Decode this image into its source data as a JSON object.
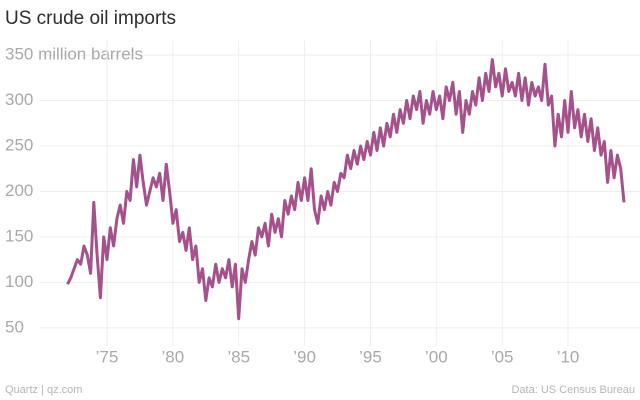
{
  "chart_data": {
    "type": "line",
    "title": "US crude oil imports",
    "source": "Data: US Census Bureau",
    "credit": "Quartz | qz.com",
    "x": [
      1972,
      1972.25,
      1972.5,
      1972.75,
      1973,
      1973.25,
      1973.5,
      1973.75,
      1974,
      1974.25,
      1974.5,
      1974.75,
      1975,
      1975.25,
      1975.5,
      1975.75,
      1976,
      1976.25,
      1976.5,
      1976.75,
      1977,
      1977.25,
      1977.5,
      1977.75,
      1978,
      1978.25,
      1978.5,
      1978.75,
      1979,
      1979.25,
      1979.5,
      1979.75,
      1980,
      1980.25,
      1980.5,
      1980.75,
      1981,
      1981.25,
      1981.5,
      1981.75,
      1982,
      1982.25,
      1982.5,
      1982.75,
      1983,
      1983.25,
      1983.5,
      1983.75,
      1984,
      1984.25,
      1984.5,
      1984.75,
      1985,
      1985.25,
      1985.5,
      1985.75,
      1986,
      1986.25,
      1986.5,
      1986.75,
      1987,
      1987.25,
      1987.5,
      1987.75,
      1988,
      1988.25,
      1988.5,
      1988.75,
      1989,
      1989.25,
      1989.5,
      1989.75,
      1990,
      1990.25,
      1990.5,
      1990.75,
      1991,
      1991.25,
      1991.5,
      1991.75,
      1992,
      1992.25,
      1992.5,
      1992.75,
      1993,
      1993.25,
      1993.5,
      1993.75,
      1994,
      1994.25,
      1994.5,
      1994.75,
      1995,
      1995.25,
      1995.5,
      1995.75,
      1996,
      1996.25,
      1996.5,
      1996.75,
      1997,
      1997.25,
      1997.5,
      1997.75,
      1998,
      1998.25,
      1998.5,
      1998.75,
      1999,
      1999.25,
      1999.5,
      1999.75,
      2000,
      2000.25,
      2000.5,
      2000.75,
      2001,
      2001.25,
      2001.5,
      2001.75,
      2002,
      2002.25,
      2002.5,
      2002.75,
      2003,
      2003.25,
      2003.5,
      2003.75,
      2004,
      2004.25,
      2004.5,
      2004.75,
      2005,
      2005.25,
      2005.5,
      2005.75,
      2006,
      2006.25,
      2006.5,
      2006.75,
      2007,
      2007.25,
      2007.5,
      2007.75,
      2008,
      2008.25,
      2008.5,
      2008.75,
      2009,
      2009.25,
      2009.5,
      2009.75,
      2010,
      2010.25,
      2010.5,
      2010.75,
      2011,
      2011.25,
      2011.5,
      2011.75,
      2012,
      2012.25,
      2012.5,
      2012.75,
      2013,
      2013.25,
      2013.5,
      2013.75,
      2014,
      2014.25
    ],
    "series": [
      {
        "name": "US crude oil imports",
        "color": "#a5518c",
        "values": [
          98,
          105,
          115,
          125,
          120,
          140,
          130,
          110,
          188,
          130,
          83,
          150,
          125,
          160,
          140,
          170,
          185,
          165,
          200,
          190,
          235,
          205,
          240,
          210,
          185,
          200,
          215,
          205,
          220,
          190,
          230,
          200,
          165,
          180,
          145,
          155,
          135,
          160,
          125,
          140,
          100,
          115,
          80,
          105,
          95,
          120,
          100,
          115,
          105,
          125,
          95,
          120,
          60,
          115,
          100,
          125,
          145,
          130,
          160,
          150,
          165,
          140,
          175,
          155,
          170,
          150,
          190,
          175,
          195,
          180,
          210,
          190,
          215,
          190,
          225,
          180,
          165,
          195,
          180,
          200,
          185,
          210,
          200,
          220,
          215,
          240,
          225,
          245,
          230,
          250,
          235,
          255,
          240,
          265,
          245,
          270,
          250,
          275,
          260,
          285,
          265,
          290,
          275,
          300,
          280,
          305,
          290,
          310,
          275,
          300,
          285,
          310,
          290,
          305,
          280,
          315,
          300,
          320,
          285,
          310,
          265,
          300,
          285,
          310,
          295,
          325,
          300,
          330,
          310,
          345,
          315,
          330,
          305,
          335,
          310,
          320,
          305,
          330,
          300,
          325,
          295,
          320,
          305,
          315,
          300,
          340,
          295,
          305,
          250,
          285,
          260,
          300,
          265,
          310,
          270,
          290,
          260,
          285,
          255,
          280,
          245,
          270,
          240,
          255,
          210,
          245,
          215,
          240,
          225,
          188
        ]
      }
    ],
    "xlim": [
      1972,
      2014.4
    ],
    "ylim": [
      30,
      360
    ],
    "xticks": [
      {
        "value": 1975,
        "label": "’75"
      },
      {
        "value": 1980,
        "label": "’80"
      },
      {
        "value": 1985,
        "label": "’85"
      },
      {
        "value": 1990,
        "label": "’90"
      },
      {
        "value": 1995,
        "label": "’95"
      },
      {
        "value": 2000,
        "label": "’00"
      },
      {
        "value": 2005,
        "label": "’05"
      },
      {
        "value": 2010,
        "label": "’10"
      }
    ],
    "yticks": [
      50,
      100,
      150,
      200,
      250,
      300,
      {
        "value": 350,
        "label": "350 million barrels"
      }
    ],
    "grid": true
  }
}
